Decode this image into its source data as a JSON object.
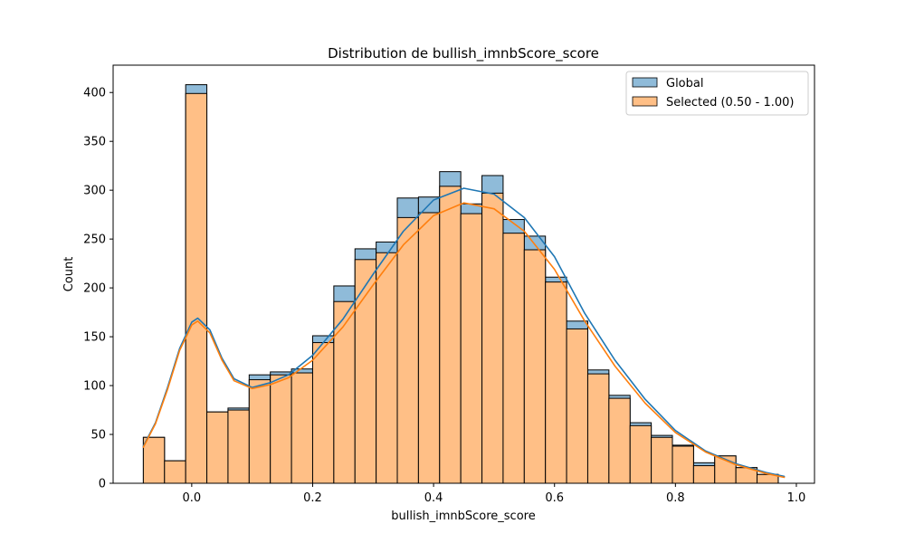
{
  "chart_data": {
    "type": "bar",
    "title": "Distribution de bullish_imnbScore_score",
    "xlabel": "bullish_imnbScore_score",
    "ylabel": "Count",
    "xlim": [
      -0.13,
      1.03
    ],
    "ylim": [
      0,
      428
    ],
    "xticks": [
      "0.0",
      "0.2",
      "0.4",
      "0.6",
      "0.8",
      "1.0"
    ],
    "xtick_values": [
      0.0,
      0.2,
      0.4,
      0.6,
      0.8,
      1.0
    ],
    "yticks": [
      "0",
      "50",
      "100",
      "150",
      "200",
      "250",
      "300",
      "350",
      "400"
    ],
    "ytick_values": [
      0,
      50,
      100,
      150,
      200,
      250,
      300,
      350,
      400
    ],
    "grid": false,
    "legend_position": "top-right",
    "bin_edges": [
      -0.08,
      -0.045,
      -0.01,
      0.025,
      0.06,
      0.095,
      0.13,
      0.165,
      0.2,
      0.235,
      0.27,
      0.305,
      0.34,
      0.375,
      0.41,
      0.445,
      0.48,
      0.515,
      0.55,
      0.585,
      0.62,
      0.655,
      0.69,
      0.725,
      0.76,
      0.795,
      0.83,
      0.865,
      0.9,
      0.935,
      0.97
    ],
    "series": [
      {
        "name": "Global",
        "color": "#1f77b4",
        "bar_fill": "#8fbbd9",
        "values": [
          47,
          23,
          408,
          73,
          77,
          111,
          114,
          117,
          151,
          202,
          240,
          247,
          292,
          293,
          319,
          286,
          315,
          270,
          253,
          211,
          166,
          116,
          90,
          62,
          49,
          39,
          21,
          28,
          16,
          9
        ],
        "kde": [
          [
            -0.08,
            38
          ],
          [
            -0.06,
            62
          ],
          [
            -0.04,
            98
          ],
          [
            -0.02,
            138
          ],
          [
            0.0,
            165
          ],
          [
            0.01,
            169
          ],
          [
            0.03,
            157
          ],
          [
            0.05,
            128
          ],
          [
            0.07,
            107
          ],
          [
            0.1,
            98
          ],
          [
            0.13,
            103
          ],
          [
            0.16,
            111
          ],
          [
            0.2,
            131
          ],
          [
            0.25,
            168
          ],
          [
            0.3,
            214
          ],
          [
            0.35,
            258
          ],
          [
            0.4,
            290
          ],
          [
            0.45,
            302
          ],
          [
            0.5,
            296
          ],
          [
            0.55,
            272
          ],
          [
            0.6,
            232
          ],
          [
            0.65,
            174
          ],
          [
            0.7,
            126
          ],
          [
            0.75,
            86
          ],
          [
            0.8,
            54
          ],
          [
            0.85,
            33
          ],
          [
            0.9,
            20
          ],
          [
            0.95,
            11
          ],
          [
            0.98,
            7
          ]
        ]
      },
      {
        "name": "Selected (0.50 - 1.00)",
        "color": "#ff7f0e",
        "bar_fill": "#ffbf86",
        "values": [
          47,
          23,
          399,
          73,
          75,
          106,
          111,
          113,
          144,
          186,
          229,
          236,
          272,
          277,
          304,
          276,
          297,
          256,
          239,
          206,
          158,
          112,
          87,
          59,
          47,
          38,
          18,
          28,
          16,
          9
        ],
        "kde": [
          [
            -0.08,
            37
          ],
          [
            -0.06,
            61
          ],
          [
            -0.04,
            96
          ],
          [
            -0.02,
            136
          ],
          [
            0.0,
            162
          ],
          [
            0.01,
            166
          ],
          [
            0.03,
            154
          ],
          [
            0.05,
            126
          ],
          [
            0.07,
            105
          ],
          [
            0.1,
            97
          ],
          [
            0.13,
            101
          ],
          [
            0.16,
            108
          ],
          [
            0.2,
            126
          ],
          [
            0.25,
            160
          ],
          [
            0.3,
            203
          ],
          [
            0.35,
            244
          ],
          [
            0.4,
            274
          ],
          [
            0.45,
            287
          ],
          [
            0.5,
            281
          ],
          [
            0.55,
            258
          ],
          [
            0.6,
            219
          ],
          [
            0.65,
            166
          ],
          [
            0.7,
            120
          ],
          [
            0.75,
            82
          ],
          [
            0.8,
            52
          ],
          [
            0.85,
            32
          ],
          [
            0.9,
            19
          ],
          [
            0.95,
            10
          ],
          [
            0.98,
            6
          ]
        ]
      }
    ]
  }
}
